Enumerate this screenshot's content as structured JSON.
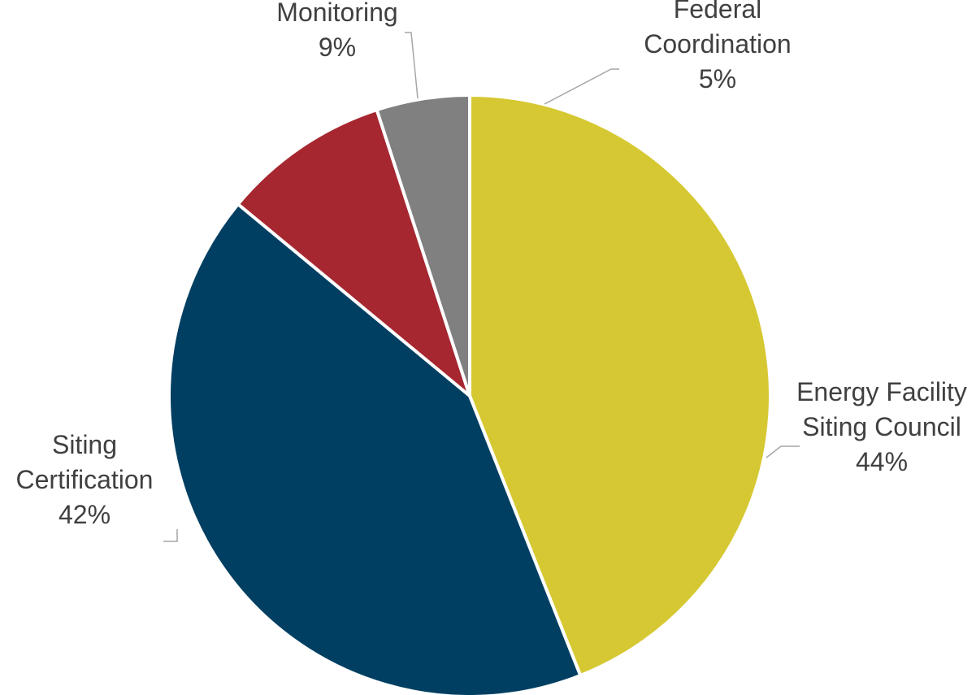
{
  "chart_data": {
    "type": "pie",
    "start_angle_deg": 0,
    "direction": "clockwise",
    "slices": [
      {
        "label": [
          "Energy Facility",
          "Siting Council"
        ],
        "percent_label": "44%",
        "value": 44,
        "color": "#d6c832"
      },
      {
        "label": [
          "Siting",
          "Certification"
        ],
        "percent_label": "42%",
        "value": 42,
        "color": "#003f62"
      },
      {
        "label": [
          "Monitoring"
        ],
        "percent_label": "9%",
        "value": 9,
        "color": "#a62730"
      },
      {
        "label": [
          "Federal",
          "Coordination"
        ],
        "percent_label": "5%",
        "value": 5,
        "color": "#808080"
      }
    ],
    "legend": "none"
  }
}
